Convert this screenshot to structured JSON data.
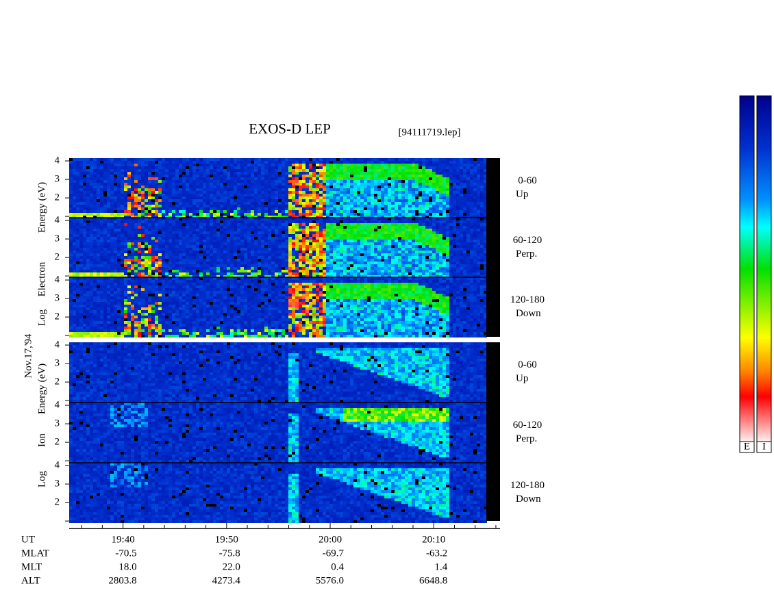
{
  "chart_data": {
    "type": "spectrogram",
    "title": "EXOS-D LEP",
    "subtitle": "[94111719.lep]",
    "date_label": "Nov.17,'94",
    "xlim": [
      1174.8,
      1216.4
    ],
    "xticks": [
      {
        "value": 1180,
        "label": "19:40"
      },
      {
        "value": 1190,
        "label": "19:50"
      },
      {
        "value": 1200,
        "label": "20:00"
      },
      {
        "value": 1210,
        "label": "20:10"
      }
    ],
    "minor_xticks": [
      1176,
      1178,
      1182,
      1184,
      1186,
      1188,
      1192,
      1194,
      1196,
      1198,
      1202,
      1204,
      1206,
      1208,
      1212,
      1214,
      1216
    ],
    "ylim": [
      0.93,
      4.15
    ],
    "yticks": [
      2,
      3,
      4
    ],
    "minor_yticks": [
      1
    ],
    "groups": [
      {
        "ylabel": [
          "Log",
          "Electron",
          "Energy (eV)"
        ],
        "panels": [
          {
            "label": [
              "0-60",
              "Up"
            ]
          },
          {
            "label": [
              "60-120",
              "Perp."
            ]
          },
          {
            "label": [
              "120-180",
              "Down"
            ]
          }
        ]
      },
      {
        "ylabel": [
          "Log",
          "Ion",
          "Energy (eV)"
        ],
        "panels": [
          {
            "label": [
              "0-60",
              "Up"
            ]
          },
          {
            "label": [
              "60-120",
              "Perp."
            ]
          },
          {
            "label": [
              "120-180",
              "Down"
            ]
          }
        ]
      }
    ],
    "orbit": {
      "time_row": "UT",
      "rows": [
        {
          "name": "MLAT",
          "values": [
            -70.5,
            -75.8,
            -69.7,
            -63.2
          ]
        },
        {
          "name": "MLT",
          "values": [
            18.0,
            22.0,
            0.4,
            1.4
          ],
          "value_labels": [
            "18.0",
            "22.0",
            "0.4",
            "1.4"
          ]
        },
        {
          "name": "ALT",
          "values": [
            2803.8,
            4273.4,
            5576.0,
            6648.8
          ],
          "value_labels": [
            "2803.8",
            "4273.4",
            "5576.0",
            "6648.8"
          ]
        }
      ]
    },
    "colorbar": {
      "labels": [
        "E",
        "I"
      ]
    }
  }
}
